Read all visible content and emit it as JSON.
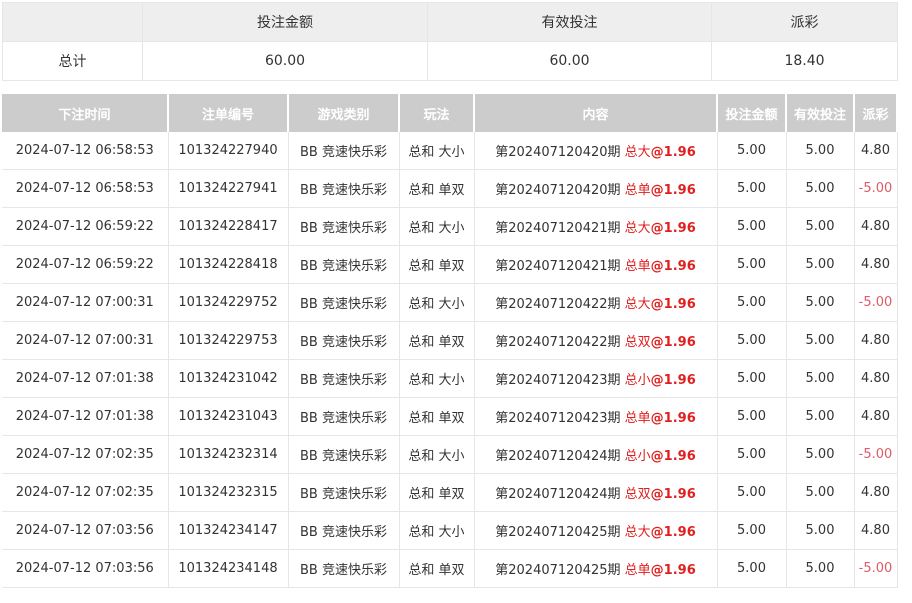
{
  "summary": {
    "headers": [
      "",
      "投注金额",
      "有效投注",
      "派彩"
    ],
    "label": "总计",
    "values": [
      "60.00",
      "60.00",
      "18.40"
    ]
  },
  "colors": {
    "header_bg": "#cccccc",
    "pick": "#e02020",
    "negative": "#e05a6a"
  },
  "detail": {
    "headers": [
      "下注时间",
      "注单编号",
      "游戏类别",
      "玩法",
      "内容",
      "投注金额",
      "有效投注",
      "派彩"
    ],
    "rows": [
      {
        "time": "2024-07-12 06:58:53",
        "id": "101324227940",
        "game": "BB 竞速快乐彩",
        "play": "总和 大小",
        "period": "第202407120420期",
        "pick": "总大",
        "odds": "@1.96",
        "amount": "5.00",
        "valid": "5.00",
        "payout": "4.80"
      },
      {
        "time": "2024-07-12 06:58:53",
        "id": "101324227941",
        "game": "BB 竞速快乐彩",
        "play": "总和 单双",
        "period": "第202407120420期",
        "pick": "总单",
        "odds": "@1.96",
        "amount": "5.00",
        "valid": "5.00",
        "payout": "-5.00"
      },
      {
        "time": "2024-07-12 06:59:22",
        "id": "101324228417",
        "game": "BB 竞速快乐彩",
        "play": "总和 大小",
        "period": "第202407120421期",
        "pick": "总大",
        "odds": "@1.96",
        "amount": "5.00",
        "valid": "5.00",
        "payout": "4.80"
      },
      {
        "time": "2024-07-12 06:59:22",
        "id": "101324228418",
        "game": "BB 竞速快乐彩",
        "play": "总和 单双",
        "period": "第202407120421期",
        "pick": "总单",
        "odds": "@1.96",
        "amount": "5.00",
        "valid": "5.00",
        "payout": "4.80"
      },
      {
        "time": "2024-07-12 07:00:31",
        "id": "101324229752",
        "game": "BB 竞速快乐彩",
        "play": "总和 大小",
        "period": "第202407120422期",
        "pick": "总大",
        "odds": "@1.96",
        "amount": "5.00",
        "valid": "5.00",
        "payout": "-5.00"
      },
      {
        "time": "2024-07-12 07:00:31",
        "id": "101324229753",
        "game": "BB 竞速快乐彩",
        "play": "总和 单双",
        "period": "第202407120422期",
        "pick": "总双",
        "odds": "@1.96",
        "amount": "5.00",
        "valid": "5.00",
        "payout": "4.80"
      },
      {
        "time": "2024-07-12 07:01:38",
        "id": "101324231042",
        "game": "BB 竞速快乐彩",
        "play": "总和 大小",
        "period": "第202407120423期",
        "pick": "总小",
        "odds": "@1.96",
        "amount": "5.00",
        "valid": "5.00",
        "payout": "4.80"
      },
      {
        "time": "2024-07-12 07:01:38",
        "id": "101324231043",
        "game": "BB 竞速快乐彩",
        "play": "总和 单双",
        "period": "第202407120423期",
        "pick": "总单",
        "odds": "@1.96",
        "amount": "5.00",
        "valid": "5.00",
        "payout": "4.80"
      },
      {
        "time": "2024-07-12 07:02:35",
        "id": "101324232314",
        "game": "BB 竞速快乐彩",
        "play": "总和 大小",
        "period": "第202407120424期",
        "pick": "总小",
        "odds": "@1.96",
        "amount": "5.00",
        "valid": "5.00",
        "payout": "-5.00"
      },
      {
        "time": "2024-07-12 07:02:35",
        "id": "101324232315",
        "game": "BB 竞速快乐彩",
        "play": "总和 单双",
        "period": "第202407120424期",
        "pick": "总双",
        "odds": "@1.96",
        "amount": "5.00",
        "valid": "5.00",
        "payout": "4.80"
      },
      {
        "time": "2024-07-12 07:03:56",
        "id": "101324234147",
        "game": "BB 竞速快乐彩",
        "play": "总和 大小",
        "period": "第202407120425期",
        "pick": "总大",
        "odds": "@1.96",
        "amount": "5.00",
        "valid": "5.00",
        "payout": "4.80"
      },
      {
        "time": "2024-07-12 07:03:56",
        "id": "101324234148",
        "game": "BB 竞速快乐彩",
        "play": "总和 单双",
        "period": "第202407120425期",
        "pick": "总单",
        "odds": "@1.96",
        "amount": "5.00",
        "valid": "5.00",
        "payout": "-5.00"
      }
    ]
  }
}
